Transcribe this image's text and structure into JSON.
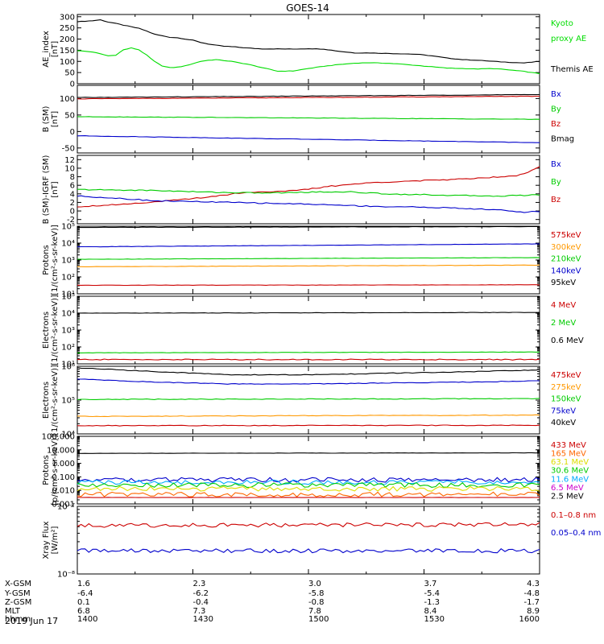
{
  "title": "GOES-14",
  "date_label": "2019 Jun 17",
  "chart_data": [
    {
      "type": "line",
      "ylabel": [
        "AE_index",
        "[nT]"
      ],
      "scale": "linear",
      "ylim": [
        0,
        310
      ],
      "ticks": [
        "0",
        "50",
        "100",
        "150",
        "200",
        "250",
        "300"
      ],
      "tick_values": [
        0,
        50,
        100,
        150,
        200,
        250,
        300
      ],
      "legend_names": [
        "Kyoto",
        "proxy AE",
        "",
        "Themis AE"
      ],
      "legend_colors": [
        "#00dd00",
        "#00dd00",
        "#ffffff",
        "#000000"
      ],
      "series": [
        {
          "name": "Themis AE",
          "color": "#000000",
          "x": [
            0,
            1,
            2,
            3,
            4,
            5,
            6,
            7,
            8,
            9,
            10,
            11,
            12,
            13,
            14,
            15,
            16,
            17,
            18,
            19,
            20,
            22,
            24,
            26,
            28,
            30,
            32,
            34,
            36,
            38,
            40,
            42,
            44,
            46,
            48,
            50,
            52,
            54,
            56,
            58,
            60
          ],
          "values": [
            278,
            280,
            282,
            286,
            276,
            270,
            262,
            255,
            248,
            236,
            222,
            215,
            208,
            206,
            200,
            195,
            185,
            178,
            172,
            168,
            166,
            160,
            156,
            156,
            155,
            157,
            155,
            145,
            138,
            138,
            136,
            134,
            132,
            125,
            115,
            108,
            105,
            100,
            96,
            93,
            100
          ]
        },
        {
          "name": "Kyoto proxy AE",
          "color": "#00dd00",
          "x": [
            0,
            2,
            4,
            5,
            6,
            7,
            8,
            9,
            10,
            11,
            12,
            13,
            14,
            15,
            16,
            17,
            18,
            20,
            22,
            24,
            26,
            28,
            30,
            32,
            34,
            36,
            38,
            40,
            42,
            44,
            46,
            48,
            50,
            52,
            54,
            56,
            58,
            60
          ],
          "values": [
            148,
            142,
            125,
            128,
            152,
            160,
            152,
            128,
            100,
            80,
            72,
            74,
            80,
            90,
            100,
            105,
            108,
            100,
            88,
            72,
            56,
            57,
            68,
            78,
            86,
            92,
            94,
            92,
            88,
            82,
            76,
            70,
            68,
            66,
            68,
            62,
            55,
            45
          ]
        }
      ]
    },
    {
      "type": "line",
      "ylabel": [
        "B (SM)",
        "[nT]"
      ],
      "scale": "linear",
      "ylim": [
        -65,
        140
      ],
      "ticks": [
        "-50",
        "0",
        "50",
        "100"
      ],
      "tick_values": [
        -50,
        0,
        50,
        100
      ],
      "legend_names": [
        "Bx",
        "By",
        "Bz",
        "Bmag"
      ],
      "legend_colors": [
        "#0000cc",
        "#00cc00",
        "#cc0000",
        "#000000"
      ],
      "series": [
        {
          "name": "Bmag",
          "color": "#000000",
          "x": [
            0,
            60
          ],
          "values": [
            103,
            112
          ]
        },
        {
          "name": "Bz",
          "color": "#cc0000",
          "x": [
            0,
            60
          ],
          "values": [
            99,
            107
          ]
        },
        {
          "name": "By",
          "color": "#00cc00",
          "x": [
            0,
            60
          ],
          "values": [
            45,
            37
          ]
        },
        {
          "name": "Bx",
          "color": "#0000cc",
          "x": [
            0,
            60
          ],
          "values": [
            -13,
            -34
          ]
        }
      ]
    },
    {
      "type": "line",
      "ylabel": [
        "B (SM)-IGRF (SM)",
        "[nT]"
      ],
      "scale": "linear",
      "ylim": [
        -3,
        13
      ],
      "ticks": [
        "-2",
        "0",
        "2",
        "4",
        "6",
        "8",
        "10",
        "12"
      ],
      "tick_values": [
        -2,
        0,
        2,
        4,
        6,
        8,
        10,
        12
      ],
      "legend_names": [
        "Bx",
        "By",
        "Bz"
      ],
      "legend_colors": [
        "#0000cc",
        "#00cc00",
        "#cc0000"
      ],
      "series": [
        {
          "name": "Bz",
          "color": "#cc0000",
          "x": [
            0,
            3,
            6,
            9,
            12,
            15,
            18,
            21,
            24,
            27,
            30,
            33,
            36,
            39,
            42,
            45,
            48,
            51,
            54,
            57,
            58,
            59,
            60
          ],
          "values": [
            1.0,
            1.3,
            1.6,
            2.0,
            2.4,
            2.9,
            3.5,
            4.2,
            4.5,
            4.6,
            5.1,
            5.8,
            6.3,
            6.7,
            6.9,
            7.1,
            7.3,
            7.6,
            7.9,
            8.3,
            8.8,
            9.5,
            10.3
          ]
        },
        {
          "name": "By",
          "color": "#00cc00",
          "x": [
            0,
            5,
            10,
            15,
            20,
            25,
            30,
            35,
            40,
            45,
            50,
            55,
            60
          ],
          "values": [
            5.0,
            4.9,
            4.8,
            4.5,
            4.3,
            4.2,
            4.4,
            4.5,
            4.0,
            3.8,
            3.6,
            3.5,
            3.8
          ]
        },
        {
          "name": "Bx",
          "color": "#0000cc",
          "x": [
            0,
            5,
            10,
            15,
            20,
            25,
            30,
            35,
            40,
            45,
            50,
            55,
            58,
            60
          ],
          "values": [
            3.5,
            3.0,
            2.4,
            2.2,
            2.0,
            1.8,
            1.6,
            1.3,
            1.0,
            0.9,
            0.6,
            0.2,
            -0.3,
            -0.1
          ]
        }
      ]
    },
    {
      "type": "line",
      "ylabel": [
        "Protons",
        "[1/(cm²-s-sr-keV)]"
      ],
      "scale": "log",
      "ylim": [
        10,
        100000
      ],
      "ticks": [
        "10¹",
        "10²",
        "10³",
        "10⁴",
        "10⁵"
      ],
      "tick_values": [
        10,
        100,
        1000,
        10000,
        100000
      ],
      "legend_names": [
        "575keV",
        "300keV",
        "210keV",
        "140keV",
        "95keV"
      ],
      "legend_colors": [
        "#cc0000",
        "#ff9900",
        "#00cc00",
        "#0000cc",
        "#000000"
      ],
      "series": [
        {
          "name": "95keV",
          "color": "#000000",
          "x": [
            0,
            60
          ],
          "values": [
            85000,
            95000
          ]
        },
        {
          "name": "140keV",
          "color": "#0000cc",
          "x": [
            0,
            60
          ],
          "values": [
            6000,
            9000
          ]
        },
        {
          "name": "210keV",
          "color": "#00cc00",
          "x": [
            0,
            60
          ],
          "values": [
            1100,
            1400
          ]
        },
        {
          "name": "300keV",
          "color": "#ff9900",
          "x": [
            0,
            60
          ],
          "values": [
            400,
            500
          ]
        },
        {
          "name": "575keV",
          "color": "#cc0000",
          "x": [
            0,
            60
          ],
          "values": [
            32,
            34
          ]
        }
      ]
    },
    {
      "type": "line",
      "ylabel": [
        "Electrons",
        "[1/(cm²-s-sr-keV)]"
      ],
      "scale": "log",
      "ylim": [
        10,
        100000
      ],
      "ticks": [
        "10¹",
        "10²",
        "10³",
        "10⁴",
        "10⁵"
      ],
      "tick_values": [
        10,
        100,
        1000,
        10000,
        100000
      ],
      "legend_names": [
        "4 MeV",
        "2 MeV",
        "0.6 MeV"
      ],
      "legend_colors": [
        "#cc0000",
        "#00cc00",
        "#000000"
      ],
      "series": [
        {
          "name": "0.6 MeV",
          "color": "#000000",
          "x": [
            0,
            60
          ],
          "values": [
            10000,
            11000
          ]
        },
        {
          "name": "2 MeV",
          "color": "#00cc00",
          "x": [
            0,
            60
          ],
          "values": [
            45,
            50
          ]
        },
        {
          "name": "4 MeV",
          "color": "#cc0000",
          "x": [
            0,
            60
          ],
          "values": [
            18,
            18
          ]
        }
      ]
    },
    {
      "type": "line",
      "ylabel": [
        "Electrons",
        "[1/(cm²-s-sr-keV)]"
      ],
      "scale": "log",
      "ylim": [
        10000,
        1000000
      ],
      "ticks": [
        "10⁴",
        "10⁵",
        "10⁶"
      ],
      "tick_values": [
        10000,
        100000,
        1000000
      ],
      "legend_names": [
        "475keV",
        "275keV",
        "150keV",
        "75keV",
        "40keV"
      ],
      "legend_colors": [
        "#cc0000",
        "#ff9900",
        "#00cc00",
        "#0000cc",
        "#000000"
      ],
      "series": [
        {
          "name": "40keV",
          "color": "#000000",
          "x": [
            0,
            10,
            20,
            30,
            40,
            50,
            60
          ],
          "values": [
            900000,
            700000,
            560000,
            560000,
            620000,
            680000,
            780000
          ]
        },
        {
          "name": "75keV",
          "color": "#0000cc",
          "x": [
            0,
            10,
            20,
            30,
            40,
            50,
            60
          ],
          "values": [
            420000,
            340000,
            300000,
            300000,
            320000,
            340000,
            370000
          ]
        },
        {
          "name": "150keV",
          "color": "#00cc00",
          "x": [
            0,
            60
          ],
          "values": [
            105000,
            110000
          ]
        },
        {
          "name": "275keV",
          "color": "#ff9900",
          "x": [
            0,
            60
          ],
          "values": [
            33000,
            36000
          ]
        },
        {
          "name": "475keV",
          "color": "#cc0000",
          "x": [
            0,
            60
          ],
          "values": [
            17500,
            18000
          ]
        }
      ]
    },
    {
      "type": "line",
      "ylabel": [
        "Protons",
        "[p/(cm²-s-sr-keV)]"
      ],
      "scale": "log",
      "ylim": [
        0.001,
        100
      ],
      "ticks": [
        "0.001",
        "0.010",
        "0.100",
        "1.000",
        "10.000",
        "100.000"
      ],
      "tick_values": [
        0.001,
        0.01,
        0.1,
        1,
        10,
        100
      ],
      "legend_names": [
        "433 MeV",
        "165 MeV",
        "63.1 MeV",
        "30.6 MeV",
        "11.6 MeV",
        "6.5 MeV",
        "2.5 MeV"
      ],
      "legend_colors": [
        "#cc0000",
        "#ff6600",
        "#dddd00",
        "#00cc00",
        "#00aaff",
        "#cc00cc",
        "#000000"
      ],
      "series": [
        {
          "name": "2.5 MeV",
          "color": "#000000",
          "x": [
            0,
            60
          ],
          "values": [
            5.5,
            6.0
          ]
        },
        {
          "name": "6.5 MeV",
          "color": "#0000cc",
          "x": [
            0,
            60
          ],
          "values": [
            0.06,
            0.06
          ]
        },
        {
          "name": "11.6 MeV",
          "color": "#00aaff",
          "x": [
            0,
            60
          ],
          "values": [
            0.04,
            0.04
          ]
        },
        {
          "name": "30.6 MeV",
          "color": "#00cc00",
          "x": [
            0,
            60
          ],
          "values": [
            0.025,
            0.025
          ]
        },
        {
          "name": "63.1 MeV",
          "color": "#dddd00",
          "x": [
            0,
            60
          ],
          "values": [
            0.013,
            0.013
          ]
        },
        {
          "name": "165 MeV",
          "color": "#ff6600",
          "x": [
            0,
            60
          ],
          "values": [
            0.005,
            0.005
          ]
        },
        {
          "name": "433 MeV",
          "color": "#cc0000",
          "x": [
            0,
            60
          ],
          "values": [
            0.003,
            0.003
          ]
        }
      ]
    },
    {
      "type": "line",
      "ylabel": [
        "Xray Flux",
        "[W/m²]"
      ],
      "scale": "log",
      "ylim": [
        1e-08,
        1e-07
      ],
      "ticks": [
        "10⁻⁸",
        "10⁻⁷"
      ],
      "tick_values": [
        1e-08,
        1e-07
      ],
      "legend_names": [
        "0.1–0.8 nm",
        "0.05–0.4 nm"
      ],
      "legend_colors": [
        "#cc0000",
        "#0000cc"
      ],
      "series": [
        {
          "name": "0.1–0.8 nm",
          "color": "#cc0000",
          "x": [
            0,
            60
          ],
          "values": [
            5.2e-08,
            5.4e-08
          ]
        },
        {
          "name": "0.05–0.4 nm",
          "color": "#0000cc",
          "x": [
            0,
            60
          ],
          "values": [
            2.2e-08,
            2.2e-08
          ]
        }
      ]
    }
  ],
  "x_axis": {
    "ticks": [
      0,
      30,
      60,
      90,
      120,
      150,
      180,
      210,
      240
    ],
    "labeled": [
      0,
      60,
      120,
      180,
      240
    ],
    "row_labels": [
      "X-GSM",
      "Y-GSM",
      "Z-GSM",
      "MLT",
      "hhmm"
    ],
    "columns": [
      [
        "1.6",
        "-6.4",
        "0.1",
        "6.8",
        "1400"
      ],
      [
        "2.3",
        "-6.2",
        "-0.4",
        "7.3",
        "1430"
      ],
      [
        "3.0",
        "-5.8",
        "-0.8",
        "7.8",
        "1500"
      ],
      [
        "3.7",
        "-5.4",
        "-1.3",
        "8.4",
        "1530"
      ],
      [
        "4.3",
        "-4.8",
        "-1.7",
        "8.9",
        "1600"
      ]
    ]
  }
}
